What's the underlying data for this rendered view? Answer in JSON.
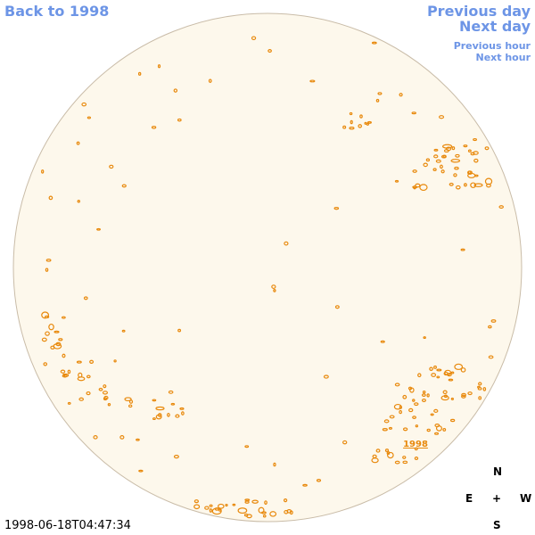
{
  "nav": {
    "back": "Back to 1998",
    "previous_day": "Previous day",
    "next_day": "Next day",
    "previous_hour": "Previous hour",
    "next_hour": "Next hour"
  },
  "region_label": "1998",
  "compass": {
    "north": "N",
    "east": "E",
    "center": "+",
    "west": "W",
    "south": "S"
  },
  "timestamp": "1998-06-18T04:47:34"
}
